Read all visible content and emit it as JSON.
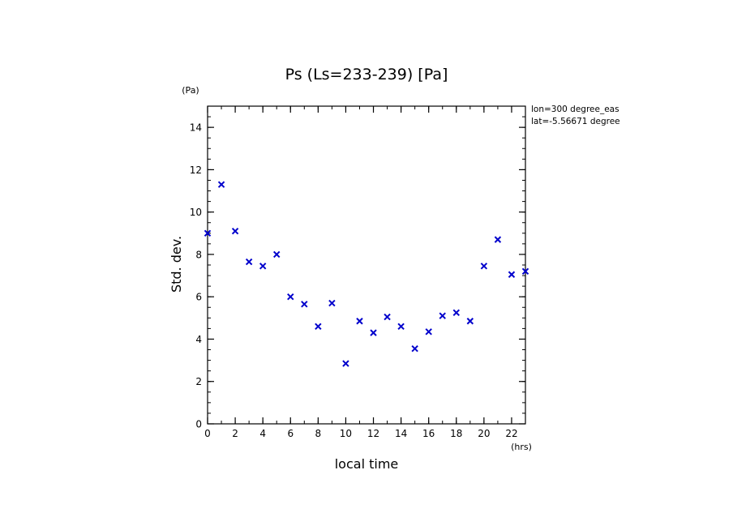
{
  "chart_data": {
    "type": "scatter",
    "title": "Ps (Ls=233-239) [Pa]",
    "xlabel": "local time",
    "ylabel": "Std. dev.",
    "x_unit": "(hrs)",
    "y_unit": "(Pa)",
    "xlim": [
      0,
      23
    ],
    "ylim": [
      0,
      15
    ],
    "x_ticks": [
      0,
      2,
      4,
      6,
      8,
      10,
      12,
      14,
      16,
      18,
      20,
      22
    ],
    "y_ticks": [
      0,
      2,
      4,
      6,
      8,
      10,
      12,
      14
    ],
    "marker": "x",
    "marker_color": "#0000cc",
    "grid": false,
    "annotations": [
      "lon=300 degree_eas",
      "lat=-5.56671 degree"
    ],
    "x": [
      0,
      1,
      2,
      3,
      4,
      5,
      6,
      7,
      8,
      9,
      10,
      11,
      12,
      13,
      14,
      15,
      16,
      17,
      18,
      19,
      20,
      21,
      22,
      23
    ],
    "y": [
      9.0,
      11.3,
      9.1,
      7.65,
      7.45,
      8.0,
      6.0,
      5.65,
      4.6,
      5.7,
      2.85,
      4.85,
      4.3,
      5.05,
      4.6,
      3.55,
      4.35,
      5.1,
      5.25,
      4.85,
      7.45,
      8.7,
      7.05,
      7.2
    ]
  }
}
